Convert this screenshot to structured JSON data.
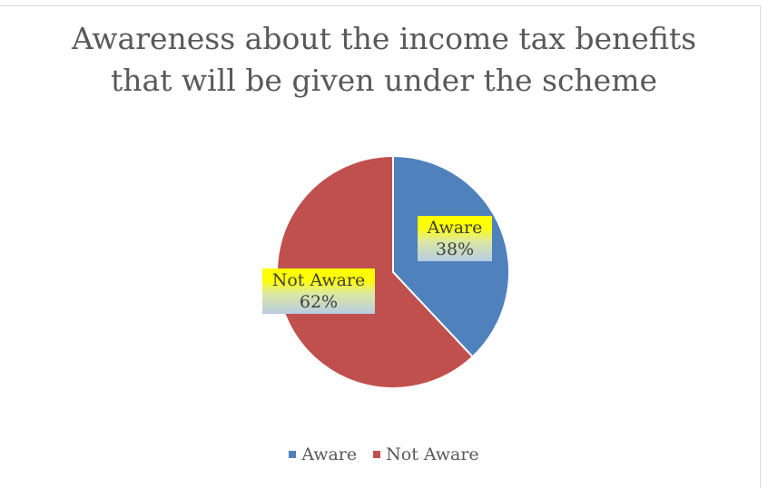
{
  "chart_data": {
    "type": "pie",
    "title": "Awareness about the income tax benefits that will be given under the scheme",
    "title_lines": [
      "Awareness about the income tax benefits",
      "that will be given under the scheme"
    ],
    "categories": [
      "Aware",
      "Not Aware"
    ],
    "values": [
      38,
      62
    ],
    "value_labels": [
      "38%",
      "62%"
    ],
    "colors": [
      "#4f81bd",
      "#c0504d"
    ],
    "legend_position": "bottom"
  }
}
